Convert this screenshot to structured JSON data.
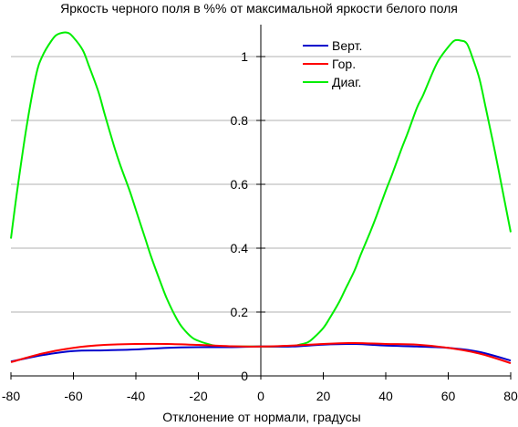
{
  "chart_data": {
    "type": "line",
    "title": "Яркость черного поля в %% от максимальной яркости белого поля",
    "xlabel": "Отклонение от нормали, градусы",
    "ylabel": "",
    "xlim": [
      -80,
      80
    ],
    "ylim": [
      0,
      1.1
    ],
    "x_ticks": [
      -80,
      -60,
      -40,
      -20,
      0,
      20,
      40,
      60,
      80
    ],
    "x_tick_labels": [
      "-80",
      "-60",
      "-40",
      "-20",
      "0",
      "20",
      "40",
      "60",
      "80"
    ],
    "y_ticks": [
      0,
      0.2,
      0.4,
      0.6,
      0.8,
      1
    ],
    "y_tick_labels": [
      "0",
      "0.2",
      "0.4",
      "0.6",
      "0.8",
      "1"
    ],
    "grid": "horizontal",
    "legend_position": "top-right",
    "series": [
      {
        "name": "Верт.",
        "color": "#0000cc",
        "x": [
          -80,
          -70,
          -60,
          -50,
          -40,
          -30,
          -20,
          -10,
          0,
          10,
          20,
          30,
          40,
          50,
          60,
          70,
          80
        ],
        "y": [
          0.045,
          0.065,
          0.078,
          0.08,
          0.083,
          0.088,
          0.09,
          0.09,
          0.092,
          0.092,
          0.098,
          0.1,
          0.095,
          0.092,
          0.088,
          0.075,
          0.048
        ]
      },
      {
        "name": "Гор.",
        "color": "#ff0000",
        "x": [
          -80,
          -70,
          -60,
          -50,
          -40,
          -30,
          -20,
          -10,
          0,
          10,
          20,
          30,
          40,
          50,
          60,
          70,
          80
        ],
        "y": [
          0.043,
          0.07,
          0.088,
          0.097,
          0.1,
          0.1,
          0.097,
          0.093,
          0.092,
          0.095,
          0.1,
          0.103,
          0.1,
          0.098,
          0.088,
          0.07,
          0.04
        ]
      },
      {
        "name": "Диаг.",
        "color": "#00ee00",
        "x": [
          -80,
          -78,
          -75,
          -72,
          -70,
          -67,
          -65,
          -62,
          -60,
          -57,
          -55,
          -52,
          -50,
          -47,
          -45,
          -42,
          -40,
          -37,
          -35,
          -32,
          -30,
          -27,
          -25,
          -22,
          -20,
          -17,
          -15,
          -12,
          -10,
          -5,
          0,
          5,
          10,
          12,
          15,
          17,
          20,
          22,
          25,
          27,
          30,
          32,
          35,
          37,
          40,
          42,
          45,
          47,
          50,
          52,
          55,
          57,
          60,
          62,
          64,
          66,
          68,
          70,
          72,
          75,
          78,
          80
        ],
        "y": [
          0.43,
          0.58,
          0.78,
          0.94,
          1.0,
          1.05,
          1.07,
          1.075,
          1.06,
          1.02,
          0.97,
          0.89,
          0.82,
          0.72,
          0.66,
          0.58,
          0.52,
          0.43,
          0.37,
          0.29,
          0.24,
          0.18,
          0.15,
          0.12,
          0.11,
          0.1,
          0.095,
          0.092,
          0.092,
          0.092,
          0.092,
          0.092,
          0.093,
          0.097,
          0.105,
          0.12,
          0.15,
          0.18,
          0.23,
          0.27,
          0.33,
          0.38,
          0.45,
          0.5,
          0.58,
          0.63,
          0.71,
          0.76,
          0.84,
          0.88,
          0.95,
          0.99,
          1.03,
          1.05,
          1.05,
          1.04,
          0.99,
          0.93,
          0.84,
          0.7,
          0.55,
          0.45
        ]
      }
    ]
  }
}
